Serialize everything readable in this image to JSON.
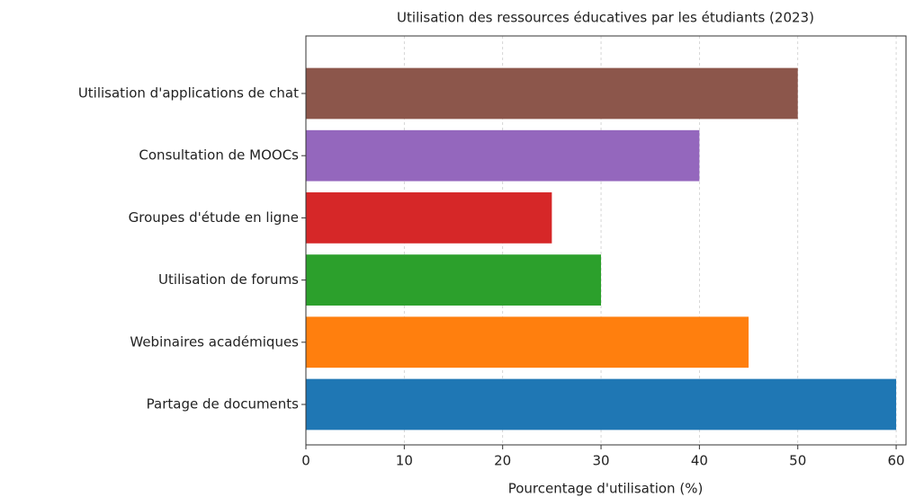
{
  "chart_data": {
    "type": "barh",
    "title": "Utilisation des ressources éducatives par les étudiants (2023)",
    "xlabel": "Pourcentage d'utilisation (%)",
    "categories": [
      "Partage de documents",
      "Webinaires académiques",
      "Utilisation de forums",
      "Groupes d'étude en ligne",
      "Consultation de MOOCs",
      "Utilisation d'applications de chat"
    ],
    "values": [
      60,
      45,
      30,
      25,
      40,
      50
    ],
    "colors": [
      "#1f77b4",
      "#ff7f0e",
      "#2ca02c",
      "#d62728",
      "#9467bd",
      "#8c564b"
    ],
    "xlim": [
      0,
      61
    ],
    "xticks": [
      0,
      10,
      20,
      30,
      40,
      50,
      60
    ],
    "grid": true
  }
}
